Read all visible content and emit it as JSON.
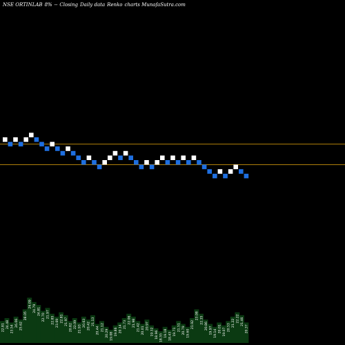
{
  "header": {
    "symbol": "NSE ORTINLAB",
    "pct": "8%",
    "sep": "--",
    "closing": "Closing",
    "daily": "Daily data",
    "renko": "Renko",
    "site": "charts MunafaSutra.com"
  },
  "colors": {
    "background": "#000000",
    "up_brick": "#ffffff",
    "down_brick": "#1e6fe0",
    "level_line": "#b8860b",
    "volume_fill": "#0b3a12",
    "volume_text": "#ffffff"
  },
  "chart_data": {
    "type": "renko",
    "bricks": [
      {
        "dir": "up",
        "level": 0
      },
      {
        "dir": "down",
        "level": -1
      },
      {
        "dir": "up",
        "level": 0
      },
      {
        "dir": "down",
        "level": -1
      },
      {
        "dir": "up",
        "level": 0
      },
      {
        "dir": "up",
        "level": 1
      },
      {
        "dir": "down",
        "level": 0
      },
      {
        "dir": "down",
        "level": -1
      },
      {
        "dir": "down",
        "level": -2
      },
      {
        "dir": "up",
        "level": -1
      },
      {
        "dir": "down",
        "level": -2
      },
      {
        "dir": "down",
        "level": -3
      },
      {
        "dir": "up",
        "level": -2
      },
      {
        "dir": "down",
        "level": -3
      },
      {
        "dir": "down",
        "level": -4
      },
      {
        "dir": "down",
        "level": -5
      },
      {
        "dir": "up",
        "level": -4
      },
      {
        "dir": "down",
        "level": -5
      },
      {
        "dir": "down",
        "level": -6
      },
      {
        "dir": "up",
        "level": -5
      },
      {
        "dir": "up",
        "level": -4
      },
      {
        "dir": "up",
        "level": -3
      },
      {
        "dir": "down",
        "level": -4
      },
      {
        "dir": "up",
        "level": -3
      },
      {
        "dir": "down",
        "level": -4
      },
      {
        "dir": "down",
        "level": -5
      },
      {
        "dir": "down",
        "level": -6
      },
      {
        "dir": "up",
        "level": -5
      },
      {
        "dir": "down",
        "level": -6
      },
      {
        "dir": "up",
        "level": -5
      },
      {
        "dir": "up",
        "level": -4
      },
      {
        "dir": "down",
        "level": -5
      },
      {
        "dir": "up",
        "level": -4
      },
      {
        "dir": "down",
        "level": -5
      },
      {
        "dir": "up",
        "level": -4
      },
      {
        "dir": "down",
        "level": -5
      },
      {
        "dir": "up",
        "level": -4
      },
      {
        "dir": "down",
        "level": -5
      },
      {
        "dir": "down",
        "level": -6
      },
      {
        "dir": "down",
        "level": -7
      },
      {
        "dir": "down",
        "level": -8
      },
      {
        "dir": "up",
        "level": -7
      },
      {
        "dir": "down",
        "level": -8
      },
      {
        "dir": "up",
        "level": -7
      },
      {
        "dir": "up",
        "level": -6
      },
      {
        "dir": "down",
        "level": -7
      },
      {
        "dir": "down",
        "level": -8
      }
    ],
    "upper_level": -1,
    "lower_level": -5.5,
    "volume": [
      {
        "v": 0.3,
        "label": "22.81"
      },
      {
        "v": 0.34,
        "label": "24.48"
      },
      {
        "v": 0.28,
        "label": "23.54"
      },
      {
        "v": 0.36,
        "label": "26.06"
      },
      {
        "v": 0.32,
        "label": "25.62"
      },
      {
        "v": 0.46,
        "label": "28.05"
      },
      {
        "v": 0.62,
        "label": "26.09"
      },
      {
        "v": 0.56,
        "label": "24.79"
      },
      {
        "v": 0.52,
        "label": "24.81"
      },
      {
        "v": 0.44,
        "label": "22.70"
      },
      {
        "v": 0.48,
        "label": "21.97"
      },
      {
        "v": 0.4,
        "label": "22.85"
      },
      {
        "v": 0.36,
        "label": "23.69"
      },
      {
        "v": 0.42,
        "label": "22.81"
      },
      {
        "v": 0.38,
        "label": "21.97"
      },
      {
        "v": 0.3,
        "label": "20.82"
      },
      {
        "v": 0.34,
        "label": "22.09"
      },
      {
        "v": 0.28,
        "label": "21.93"
      },
      {
        "v": 0.36,
        "label": "20.63"
      },
      {
        "v": 0.32,
        "label": "20.42"
      },
      {
        "v": 0.38,
        "label": "21.13"
      },
      {
        "v": 0.26,
        "label": "20.44"
      },
      {
        "v": 0.3,
        "label": "21.12"
      },
      {
        "v": 0.22,
        "label": "20.29"
      },
      {
        "v": 0.18,
        "label": "19.08"
      },
      {
        "v": 0.24,
        "label": "19.86"
      },
      {
        "v": 0.28,
        "label": "20.14"
      },
      {
        "v": 0.34,
        "label": "21.73"
      },
      {
        "v": 0.4,
        "label": "22.06"
      },
      {
        "v": 0.36,
        "label": "21.98"
      },
      {
        "v": 0.3,
        "label": "21.42"
      },
      {
        "v": 0.26,
        "label": "20.01"
      },
      {
        "v": 0.32,
        "label": "20.97"
      },
      {
        "v": 0.24,
        "label": "19.32"
      },
      {
        "v": 0.2,
        "label": "18.96"
      },
      {
        "v": 0.16,
        "label": "18.55"
      },
      {
        "v": 0.22,
        "label": "19.18"
      },
      {
        "v": 0.18,
        "label": "18.43"
      },
      {
        "v": 0.24,
        "label": "19.71"
      },
      {
        "v": 0.3,
        "label": "21.51"
      },
      {
        "v": 0.26,
        "label": "20.79"
      },
      {
        "v": 0.22,
        "label": "19.60"
      },
      {
        "v": 0.34,
        "label": "21.92"
      },
      {
        "v": 0.46,
        "label": "23.08"
      },
      {
        "v": 0.4,
        "label": "22.35"
      },
      {
        "v": 0.32,
        "label": "20.86"
      },
      {
        "v": 0.26,
        "label": "19.97"
      },
      {
        "v": 0.22,
        "label": "19.14"
      },
      {
        "v": 0.28,
        "label": "20.01"
      },
      {
        "v": 0.24,
        "label": "19.07"
      },
      {
        "v": 0.3,
        "label": "20.53"
      },
      {
        "v": 0.36,
        "label": "21.22"
      },
      {
        "v": 0.42,
        "label": "22.22"
      },
      {
        "v": 0.38,
        "label": "21.46"
      },
      {
        "v": 0.28,
        "label": "20.37"
      }
    ]
  }
}
